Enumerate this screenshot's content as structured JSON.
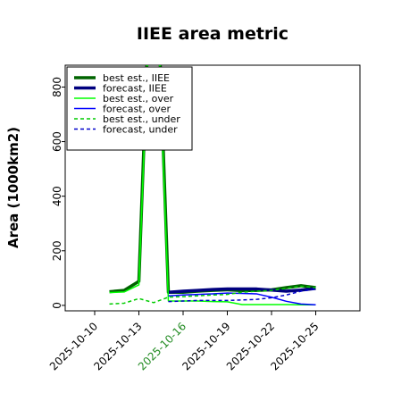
{
  "chart_data": {
    "type": "line",
    "title": "IIEE area metric",
    "xlabel": "",
    "ylabel": "Area (1000km2)",
    "ylim": [
      -20,
      880
    ],
    "xlim": [
      "2025-10-08",
      "2025-10-28"
    ],
    "y_ticks": [
      0,
      200,
      400,
      600,
      800
    ],
    "x_ticks": [
      "2025-10-10",
      "2025-10-13",
      "2025-10-16",
      "2025-10-19",
      "2025-10-22",
      "2025-10-25"
    ],
    "highlighted_tick": "2025-10-16",
    "highlight_color": "#228b22",
    "legend_position": "top-left",
    "grid": false,
    "x": [
      "2025-10-11",
      "2025-10-12",
      "2025-10-13",
      "2025-10-14",
      "2025-10-15",
      "2025-10-16",
      "2025-10-17",
      "2025-10-18",
      "2025-10-19",
      "2025-10-20",
      "2025-10-21",
      "2025-10-22",
      "2025-10-23",
      "2025-10-24",
      "2025-10-25"
    ],
    "series": [
      {
        "name": "best est., IIEE",
        "color": "#006400",
        "width": 3.5,
        "dash": "",
        "values": [
          50,
          55,
          88,
          1560,
          48,
          48,
          52,
          55,
          57,
          54,
          55,
          57,
          65,
          72,
          65
        ]
      },
      {
        "name": "forecast, IIEE",
        "color": "#00007f",
        "width": 3.5,
        "dash": "",
        "values": [
          null,
          null,
          null,
          null,
          48,
          52,
          55,
          58,
          60,
          60,
          60,
          56,
          52,
          56,
          62
        ]
      },
      {
        "name": "best est., over",
        "color": "#00ff00",
        "width": 1.5,
        "dash": "",
        "values": [
          47,
          49,
          75,
          1500,
          16,
          16,
          16,
          14,
          13,
          3,
          3,
          3,
          3,
          2,
          2
        ]
      },
      {
        "name": "forecast, over",
        "color": "#0000ff",
        "width": 1.5,
        "dash": "",
        "values": [
          null,
          null,
          null,
          null,
          35,
          38,
          40,
          42,
          45,
          44,
          42,
          30,
          15,
          5,
          2
        ]
      },
      {
        "name": "best est., under",
        "color": "#00cc00",
        "width": 1.5,
        "dash": "4,3",
        "values": [
          5,
          8,
          25,
          10,
          30,
          32,
          35,
          38,
          40,
          48,
          52,
          55,
          62,
          70,
          65
        ]
      },
      {
        "name": "forecast, under",
        "color": "#0000cc",
        "width": 1.5,
        "dash": "4,3",
        "values": [
          null,
          null,
          null,
          null,
          14,
          16,
          18,
          18,
          18,
          20,
          22,
          28,
          38,
          52,
          60
        ]
      }
    ]
  }
}
